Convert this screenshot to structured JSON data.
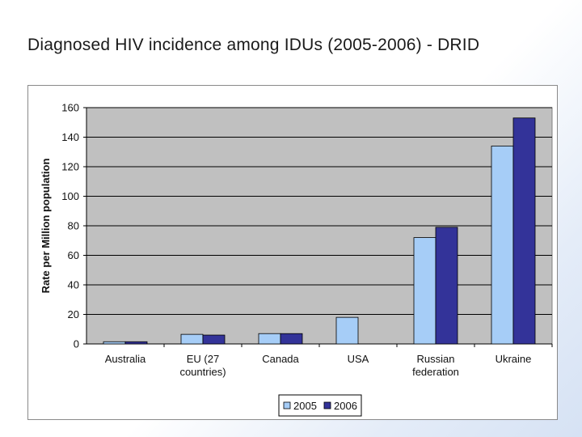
{
  "slide": {
    "title": "Diagnosed HIV incidence among IDUs (2005-2006) - DRID"
  },
  "chart_data": {
    "type": "bar",
    "title": "",
    "xlabel": "",
    "ylabel": "Rate per Million population",
    "ylim": [
      0,
      160
    ],
    "yticks": [
      0,
      20,
      40,
      60,
      80,
      100,
      120,
      140,
      160
    ],
    "grid": true,
    "legend_position": "bottom",
    "categories": [
      [
        "Australia"
      ],
      [
        "EU (27",
        "countries)"
      ],
      [
        "Canada"
      ],
      [
        "USA"
      ],
      [
        "Russian",
        "federation"
      ],
      [
        "Ukraine"
      ]
    ],
    "series": [
      {
        "name": "2005",
        "color": "#a6cdf7",
        "values": [
          1.5,
          6.5,
          7,
          18,
          72,
          134
        ]
      },
      {
        "name": "2006",
        "color": "#333399",
        "values": [
          1.5,
          6,
          7,
          null,
          79,
          153
        ]
      }
    ],
    "plot_background": "#c0c0c0"
  }
}
